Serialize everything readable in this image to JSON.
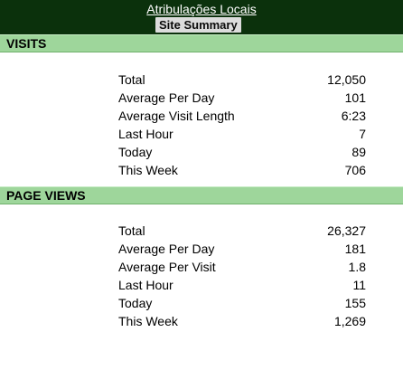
{
  "header": {
    "site_name": "Atribulações Locais",
    "summary_label": "Site Summary"
  },
  "visits": {
    "title": "VISITS",
    "rows": [
      {
        "label": "Total",
        "value": "12,050"
      },
      {
        "label": "Average Per Day",
        "value": "101"
      },
      {
        "label": "Average Visit Length",
        "value": "6:23"
      },
      {
        "label": "Last Hour",
        "value": "7"
      },
      {
        "label": "Today",
        "value": "89"
      },
      {
        "label": "This Week",
        "value": "706"
      }
    ]
  },
  "page_views": {
    "title": "PAGE VIEWS",
    "rows": [
      {
        "label": "Total",
        "value": "26,327"
      },
      {
        "label": "Average Per Day",
        "value": "181"
      },
      {
        "label": "Average Per Visit",
        "value": "1.8"
      },
      {
        "label": "Last Hour",
        "value": "11"
      },
      {
        "label": "Today",
        "value": "155"
      },
      {
        "label": "This Week",
        "value": "1,269"
      }
    ]
  },
  "colors": {
    "header_bar": "#0b310c",
    "section_band": "#9ed69b",
    "badge": "#dcdcdc"
  }
}
